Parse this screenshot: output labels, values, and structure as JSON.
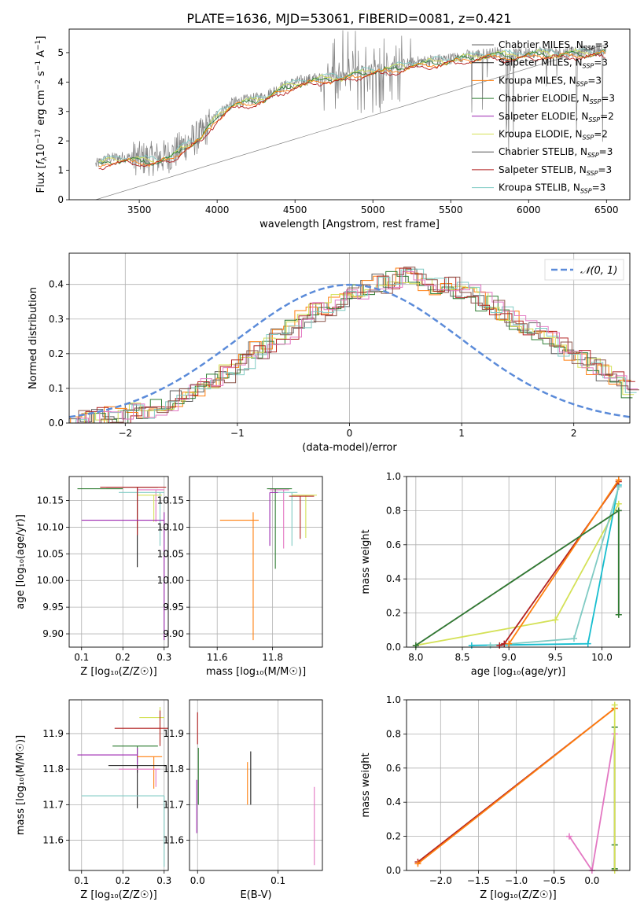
{
  "figure_title": "PLATE=1636, MJD=53061, FIBERID=0081, z=0.421",
  "colors": {
    "Chabrier MILES": "#606060",
    "Salpeter MILES": "#1f1f1f",
    "Kroupa MILES": "#ff7f0e",
    "Chabrier ELODIE": "#2e7d32",
    "Salpeter ELODIE": "#9c27b0",
    "Kroupa ELODIE": "#d4e157",
    "Chabrier STELIB": "#555555",
    "Salpeter STELIB": "#b22222",
    "Kroupa STELIB": "#80cbc4",
    "normal": "#5b8bd9",
    "pink": "#e377c2",
    "olive": "#bcbd22",
    "cyan": "#17becf"
  },
  "chart_data": [
    {
      "id": "spectrum",
      "type": "line",
      "title": "PLATE=1636, MJD=53061, FIBERID=0081, z=0.421",
      "xlabel": "wavelength [Angstrom, rest frame]",
      "ylabel": "Flux [f_λ 10^-17 erg cm^-2 s^-1 A^-1]",
      "xlim": [
        3050,
        6650
      ],
      "ylim": [
        0,
        5.8
      ],
      "xticks": [
        3500,
        4000,
        4500,
        5000,
        5500,
        6000,
        6500
      ],
      "yticks": [
        0,
        1,
        2,
        3,
        4,
        5
      ],
      "grid": false,
      "legend": "top-right",
      "data_envelope": {
        "x": [
          3220,
          3300,
          3400,
          3500,
          3600,
          3700,
          3800,
          3900,
          4000,
          4100,
          4200,
          4300,
          4400,
          4500,
          4600,
          4700,
          4800,
          4900,
          5000,
          5100,
          5200,
          5300,
          5400,
          5500,
          5600,
          5700,
          5800,
          5900,
          6000,
          6100,
          6200,
          6300,
          6400,
          6500
        ],
        "y": [
          1.2,
          1.4,
          1.45,
          1.4,
          1.4,
          1.5,
          1.9,
          2.2,
          2.9,
          3.3,
          3.4,
          3.5,
          3.8,
          4.0,
          4.1,
          4.2,
          4.2,
          4.35,
          4.45,
          4.5,
          4.6,
          4.7,
          4.75,
          4.8,
          4.9,
          4.95,
          5.0,
          4.95,
          5.0,
          5.05,
          5.0,
          5.05,
          5.05,
          5.1
        ]
      },
      "series": [
        {
          "name": "Chabrier MILES, N_SSP=3",
          "label": "Chabrier MILES, N",
          "sub": "SSP",
          "suffix": "=3"
        },
        {
          "name": "Salpeter MILES, N_SSP=3",
          "label": "Salpeter MILES, N",
          "sub": "SSP",
          "suffix": "=3"
        },
        {
          "name": "Kroupa MILES, N_SSP=3",
          "label": "Kroupa MILES, N",
          "sub": "SSP",
          "suffix": "=3"
        },
        {
          "name": "Chabrier ELODIE, N_SSP=3",
          "label": "Chabrier ELODIE, N",
          "sub": "SSP",
          "suffix": "=3"
        },
        {
          "name": "Salpeter ELODIE, N_SSP=2",
          "label": "Salpeter ELODIE, N",
          "sub": "SSP",
          "suffix": "=2"
        },
        {
          "name": "Kroupa ELODIE, N_SSP=2",
          "label": "Kroupa ELODIE, N",
          "sub": "SSP",
          "suffix": "=2"
        },
        {
          "name": "Chabrier STELIB, N_SSP=3",
          "label": "Chabrier STELIB, N",
          "sub": "SSP",
          "suffix": "=3"
        },
        {
          "name": "Salpeter STELIB, N_SSP=3",
          "label": "Salpeter STELIB, N",
          "sub": "SSP",
          "suffix": "=3"
        },
        {
          "name": "Kroupa STELIB, N_SSP=3",
          "label": "Kroupa STELIB, N",
          "sub": "SSP",
          "suffix": "=3"
        }
      ]
    },
    {
      "id": "residuals",
      "type": "bar",
      "xlabel": "(data-model)/error",
      "ylabel": "Normed distribution",
      "xlim": [
        -2.5,
        2.5
      ],
      "ylim": [
        0,
        0.49
      ],
      "xticks": [
        -2,
        -1,
        0,
        1,
        2
      ],
      "yticks": [
        0.0,
        0.1,
        0.2,
        0.3,
        0.4
      ],
      "grid": true,
      "legend": "top-right",
      "legend_label": "N(0,1)",
      "bin_width": 0.1,
      "histogram_values": [
        0.01,
        0.01,
        0.015,
        0.02,
        0.025,
        0.03,
        0.04,
        0.05,
        0.06,
        0.07,
        0.085,
        0.1,
        0.12,
        0.14,
        0.16,
        0.18,
        0.21,
        0.23,
        0.25,
        0.27,
        0.3,
        0.32,
        0.33,
        0.35,
        0.36,
        0.38,
        0.39,
        0.4,
        0.41,
        0.42,
        0.43,
        0.41,
        0.39,
        0.4,
        0.38,
        0.37,
        0.35,
        0.34,
        0.32,
        0.3,
        0.28,
        0.26,
        0.24,
        0.22,
        0.2,
        0.18,
        0.16,
        0.14,
        0.12,
        0.1
      ]
    },
    {
      "id": "age-vs-Z",
      "type": "scatter",
      "xlabel": "Z [log10(Z/Z☉)]",
      "ylabel": "age [log10(age/yr)]",
      "xlim": [
        0.07,
        0.31
      ],
      "ylim": [
        9.875,
        10.195
      ],
      "xticks": [
        0.1,
        0.2,
        0.3
      ],
      "yticks": [
        9.9,
        9.95,
        10.0,
        10.05,
        10.1,
        10.15
      ],
      "points": [
        {
          "x": 0.235,
          "y": 10.175,
          "xerr": [
            0.075,
            0.05
          ],
          "yerr": [
            0.15,
            0.0
          ]
        },
        {
          "x": 0.28,
          "y": 10.17,
          "xerr": [
            0.045,
            0.02
          ],
          "yerr": [
            0.06,
            0.0
          ]
        },
        {
          "x": 0.29,
          "y": 10.165,
          "xerr": [
            0.1,
            0.01
          ],
          "yerr": [
            0.1,
            0.0
          ]
        },
        {
          "x": 0.275,
          "y": 10.16,
          "xerr": [
            0.04,
            0.02
          ],
          "yerr": [
            0.05,
            0.0
          ]
        },
        {
          "x": 0.235,
          "y": 10.175,
          "xerr": [
            0.09,
            0.07
          ],
          "yerr": [
            0.09,
            0.0
          ]
        },
        {
          "x": 0.2,
          "y": 10.172,
          "xerr": [
            0.11,
            0.0
          ],
          "yerr": [
            0.0,
            0.0
          ]
        },
        {
          "x": 0.3,
          "y": 10.113,
          "xerr": [
            0.2,
            0.0
          ],
          "yerr": [
            0.225,
            0.015
          ]
        }
      ]
    },
    {
      "id": "age-vs-mass",
      "type": "scatter",
      "xlabel": "mass [log10(M/M☉)]",
      "xlim": [
        11.5,
        11.98
      ],
      "ylim": [
        9.875,
        10.195
      ],
      "xticks": [
        11.6,
        11.8
      ],
      "yticks": [
        9.9,
        9.95,
        10.0,
        10.05,
        10.1,
        10.15
      ],
      "points": [
        {
          "x": 11.84,
          "y": 10.17,
          "xerr": [
            0.05,
            0.02
          ],
          "yerr": [
            0.11,
            0.0
          ]
        },
        {
          "x": 11.87,
          "y": 10.165,
          "xerr": [
            0.05,
            0.02
          ],
          "yerr": [
            0.1,
            0.0
          ]
        },
        {
          "x": 11.92,
          "y": 10.16,
          "xerr": [
            0.05,
            0.04
          ],
          "yerr": [
            0.08,
            0.0
          ]
        },
        {
          "x": 11.9,
          "y": 10.158,
          "xerr": [
            0.04,
            0.05
          ],
          "yerr": [
            0.08,
            0.0
          ]
        },
        {
          "x": 11.81,
          "y": 10.172,
          "xerr": [
            0.03,
            0.06
          ],
          "yerr": [
            0.15,
            0.0
          ]
        },
        {
          "x": 11.79,
          "y": 10.165,
          "xerr": [
            0.0,
            0.03
          ],
          "yerr": [
            0.1,
            0.0
          ]
        },
        {
          "x": 11.73,
          "y": 10.113,
          "xerr": [
            0.12,
            0.02
          ],
          "yerr": [
            0.225,
            0.015
          ]
        }
      ]
    },
    {
      "id": "weight-vs-age",
      "type": "line",
      "xlabel": "age [log10(age/yr)]",
      "ylabel": "mass weight",
      "xlim": [
        7.9,
        10.3
      ],
      "ylim": [
        0,
        1.0
      ],
      "xticks": [
        8.0,
        8.5,
        9.0,
        9.5,
        10.0
      ],
      "yticks": [
        0.0,
        0.2,
        0.4,
        0.6,
        0.8,
        1.0
      ],
      "series": [
        {
          "x": [
            8.0,
            9.5,
            10.18
          ],
          "y": [
            0.01,
            0.16,
            0.84
          ]
        },
        {
          "x": [
            8.6,
            9.85,
            10.18
          ],
          "y": [
            0.01,
            0.02,
            0.95
          ]
        },
        {
          "x": [
            8.8,
            9.7,
            10.18
          ],
          "y": [
            0.01,
            0.05,
            0.94
          ]
        },
        {
          "x": [
            8.9,
            8.95,
            10.18
          ],
          "y": [
            0.01,
            0.02,
            0.97
          ]
        },
        {
          "x": [
            9.0,
            10.18
          ],
          "y": [
            0.02,
            0.98
          ]
        },
        {
          "x": [
            8.0,
            10.18,
            10.18
          ],
          "y": [
            0.01,
            0.8,
            0.19
          ]
        },
        {
          "x": [
            8.0,
            10.18,
            10.18
          ],
          "y": [
            0.01,
            0.8,
            0.19
          ]
        }
      ]
    },
    {
      "id": "mass-vs-Z",
      "type": "scatter",
      "xlabel": "Z [log10(Z/Z☉)]",
      "ylabel": "mass [log10(M/M☉)]",
      "xlim": [
        0.07,
        0.31
      ],
      "ylim": [
        11.515,
        11.995
      ],
      "xticks": [
        0.1,
        0.2,
        0.3
      ],
      "yticks": [
        11.6,
        11.7,
        11.8,
        11.9
      ],
      "points": [
        {
          "x": 0.29,
          "y": 11.945,
          "xerr": [
            0.05,
            0.01
          ],
          "yerr": [
            0.07,
            0.03
          ]
        },
        {
          "x": 0.29,
          "y": 11.915,
          "xerr": [
            0.11,
            0.02
          ],
          "yerr": [
            0.05,
            0.05
          ]
        },
        {
          "x": 0.235,
          "y": 11.865,
          "xerr": [
            0.06,
            0.05
          ],
          "yerr": [
            0.05,
            0.0
          ]
        },
        {
          "x": 0.235,
          "y": 11.84,
          "xerr": [
            0.145,
            0.0
          ],
          "yerr": [
            0.05,
            0.02
          ]
        },
        {
          "x": 0.275,
          "y": 11.835,
          "xerr": [
            0.04,
            0.02
          ],
          "yerr": [
            0.09,
            0.0
          ]
        },
        {
          "x": 0.235,
          "y": 11.81,
          "xerr": [
            0.07,
            0.07
          ],
          "yerr": [
            0.12,
            0.0
          ]
        },
        {
          "x": 0.28,
          "y": 11.8,
          "xerr": [
            0.09,
            0.01
          ],
          "yerr": [
            0.05,
            0.0
          ]
        },
        {
          "x": 0.3,
          "y": 11.725,
          "xerr": [
            0.2,
            0.0
          ],
          "yerr": [
            0.2,
            0.0
          ]
        }
      ]
    },
    {
      "id": "mass-vs-EBV",
      "type": "scatter",
      "xlabel": "E(B-V)",
      "xlim": [
        -0.01,
        0.155
      ],
      "ylim": [
        11.515,
        11.995
      ],
      "xticks": [
        0.0,
        0.1
      ],
      "yticks": [
        11.6,
        11.7,
        11.8,
        11.9
      ],
      "points": [
        {
          "x": 0.0,
          "y": 11.93,
          "xerr": [
            0,
            0
          ],
          "yerr": [
            0.06,
            0.03
          ]
        },
        {
          "x": 0.001,
          "y": 11.78,
          "xerr": [
            0,
            0
          ],
          "yerr": [
            0.08,
            0.08
          ]
        },
        {
          "x": -0.001,
          "y": 11.7,
          "xerr": [
            0,
            0
          ],
          "yerr": [
            0.08,
            0.07
          ]
        },
        {
          "x": 0.062,
          "y": 11.76,
          "xerr": [
            0,
            0
          ],
          "yerr": [
            0.06,
            0.06
          ]
        },
        {
          "x": 0.066,
          "y": 11.78,
          "xerr": [
            0,
            0
          ],
          "yerr": [
            0.08,
            0.07
          ]
        },
        {
          "x": 0.145,
          "y": 11.64,
          "xerr": [
            0,
            0
          ],
          "yerr": [
            0.11,
            0.11
          ]
        }
      ]
    },
    {
      "id": "weight-vs-Z",
      "type": "line",
      "xlabel": "Z [log10(Z/Z☉)]",
      "ylabel": "mass weight",
      "xlim": [
        -2.45,
        0.5
      ],
      "ylim": [
        0,
        1.0
      ],
      "xticks": [
        -2.0,
        -1.5,
        -1.0,
        -0.5,
        0.0
      ],
      "yticks": [
        0.0,
        0.2,
        0.4,
        0.6,
        0.8,
        1.0
      ],
      "series": [
        {
          "x": [
            -2.3,
            0.3
          ],
          "y": [
            0.05,
            0.95
          ]
        },
        {
          "x": [
            -2.3,
            0.3
          ],
          "y": [
            0.04,
            0.95
          ]
        },
        {
          "x": [
            -0.3,
            0.0,
            0.3,
            0.3
          ],
          "y": [
            0.2,
            0.0,
            0.8,
            0.0
          ]
        },
        {
          "x": [
            0.3,
            0.3,
            0.3
          ],
          "y": [
            0.15,
            0.84,
            0.01
          ]
        },
        {
          "x": [
            0.3,
            0.3
          ],
          "y": [
            0.0,
            0.97
          ]
        }
      ]
    }
  ]
}
